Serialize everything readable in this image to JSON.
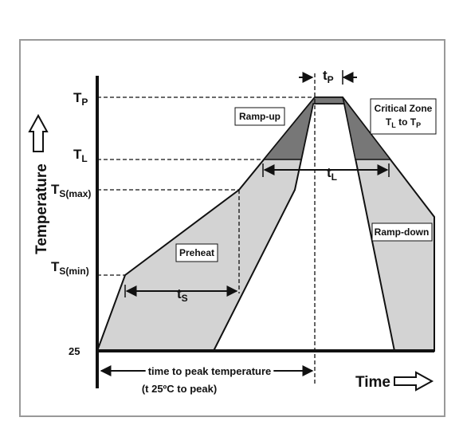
{
  "y_labels": [
    {
      "main": "T",
      "sub": "P"
    },
    {
      "main": "T",
      "sub": "L"
    },
    {
      "main": "T",
      "sub": "S(max)"
    },
    {
      "main": "T",
      "sub": "S(min)"
    },
    {
      "main": "25"
    }
  ],
  "y_axis_title": "Temperature",
  "x_axis_title": "Time",
  "regions": {
    "ramp_up": "Ramp-up",
    "preheat": "Preheat",
    "ramp_down": "Ramp-down",
    "critical_zone": {
      "title": "Critical Zone",
      "subtitle": [
        {
          "main": "T",
          "sub": "L"
        },
        {
          "main": " to T",
          "sub": "P"
        }
      ]
    }
  },
  "durations": {
    "tp": {
      "main": "t",
      "sub": "P"
    },
    "tl": {
      "main": "t",
      "sub": "L"
    },
    "ts": {
      "main": "t",
      "sub": "S"
    }
  },
  "time_to_peak": {
    "line1": "time to peak temperature",
    "line2": "(t 25ºC to peak)"
  }
}
